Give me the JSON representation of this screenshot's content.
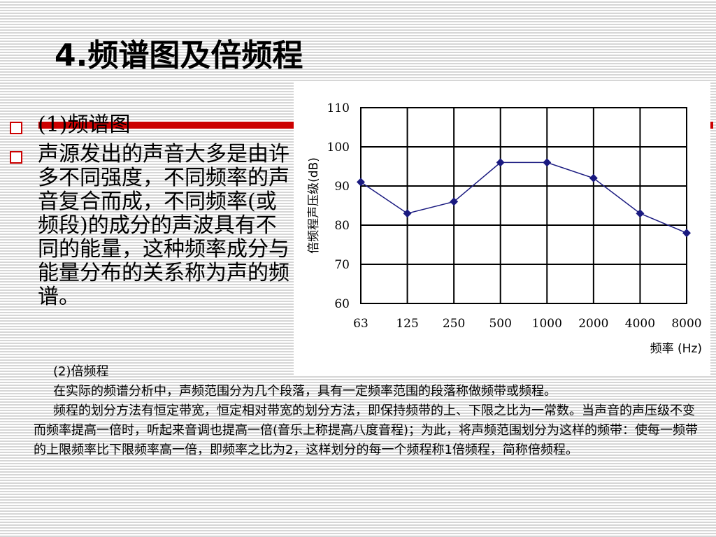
{
  "slide": {
    "title": "4.频谱图及倍频程",
    "bullet_1": "(1)频谱图",
    "bullet_2": "声源发出的声音大多是由许多不同强度，不同频率的声音复合而成，不同频率(或频段)的成分的声波具有不同的能量，这种频率成分与能量分布的关系称为声的频谱。",
    "subheading": "(2)倍频程",
    "paragraph_1": "在实际的频谱分析中，声频范围分为几个段落，具有一定频率范围的段落称做频带或频程。",
    "paragraph_2": "频程的划分方法有恒定带宽，恒定相对带宽的划分方法，即保持频带的上、下限之比为一常数。当声音的声压级不变而频率提高一倍时，听起来音调也提高一倍(音乐上称提高八度音程)；为此，将声频范围划分为这样的频带：使每一频带的上限频率比下限频率高一倍，即频率之比为2，这样划分的每一个频程称1倍频程，简称倍频程。"
  },
  "colors": {
    "accent_red": "#cc0000",
    "series_line": "#1a1a80"
  },
  "chart_data": {
    "type": "line",
    "categories": [
      "63",
      "125",
      "250",
      "500",
      "1000",
      "2000",
      "4000",
      "8000"
    ],
    "series": [
      {
        "values": [
          91,
          83,
          86,
          96,
          96,
          92,
          83,
          78
        ]
      }
    ],
    "xlabel": "频率 (Hz)",
    "ylabel": "倍频程声压级(dB)",
    "yticks": [
      "60",
      "70",
      "80",
      "90",
      "100",
      "110"
    ],
    "ylim": [
      60,
      110
    ],
    "grid": true,
    "marker": "diamond"
  }
}
